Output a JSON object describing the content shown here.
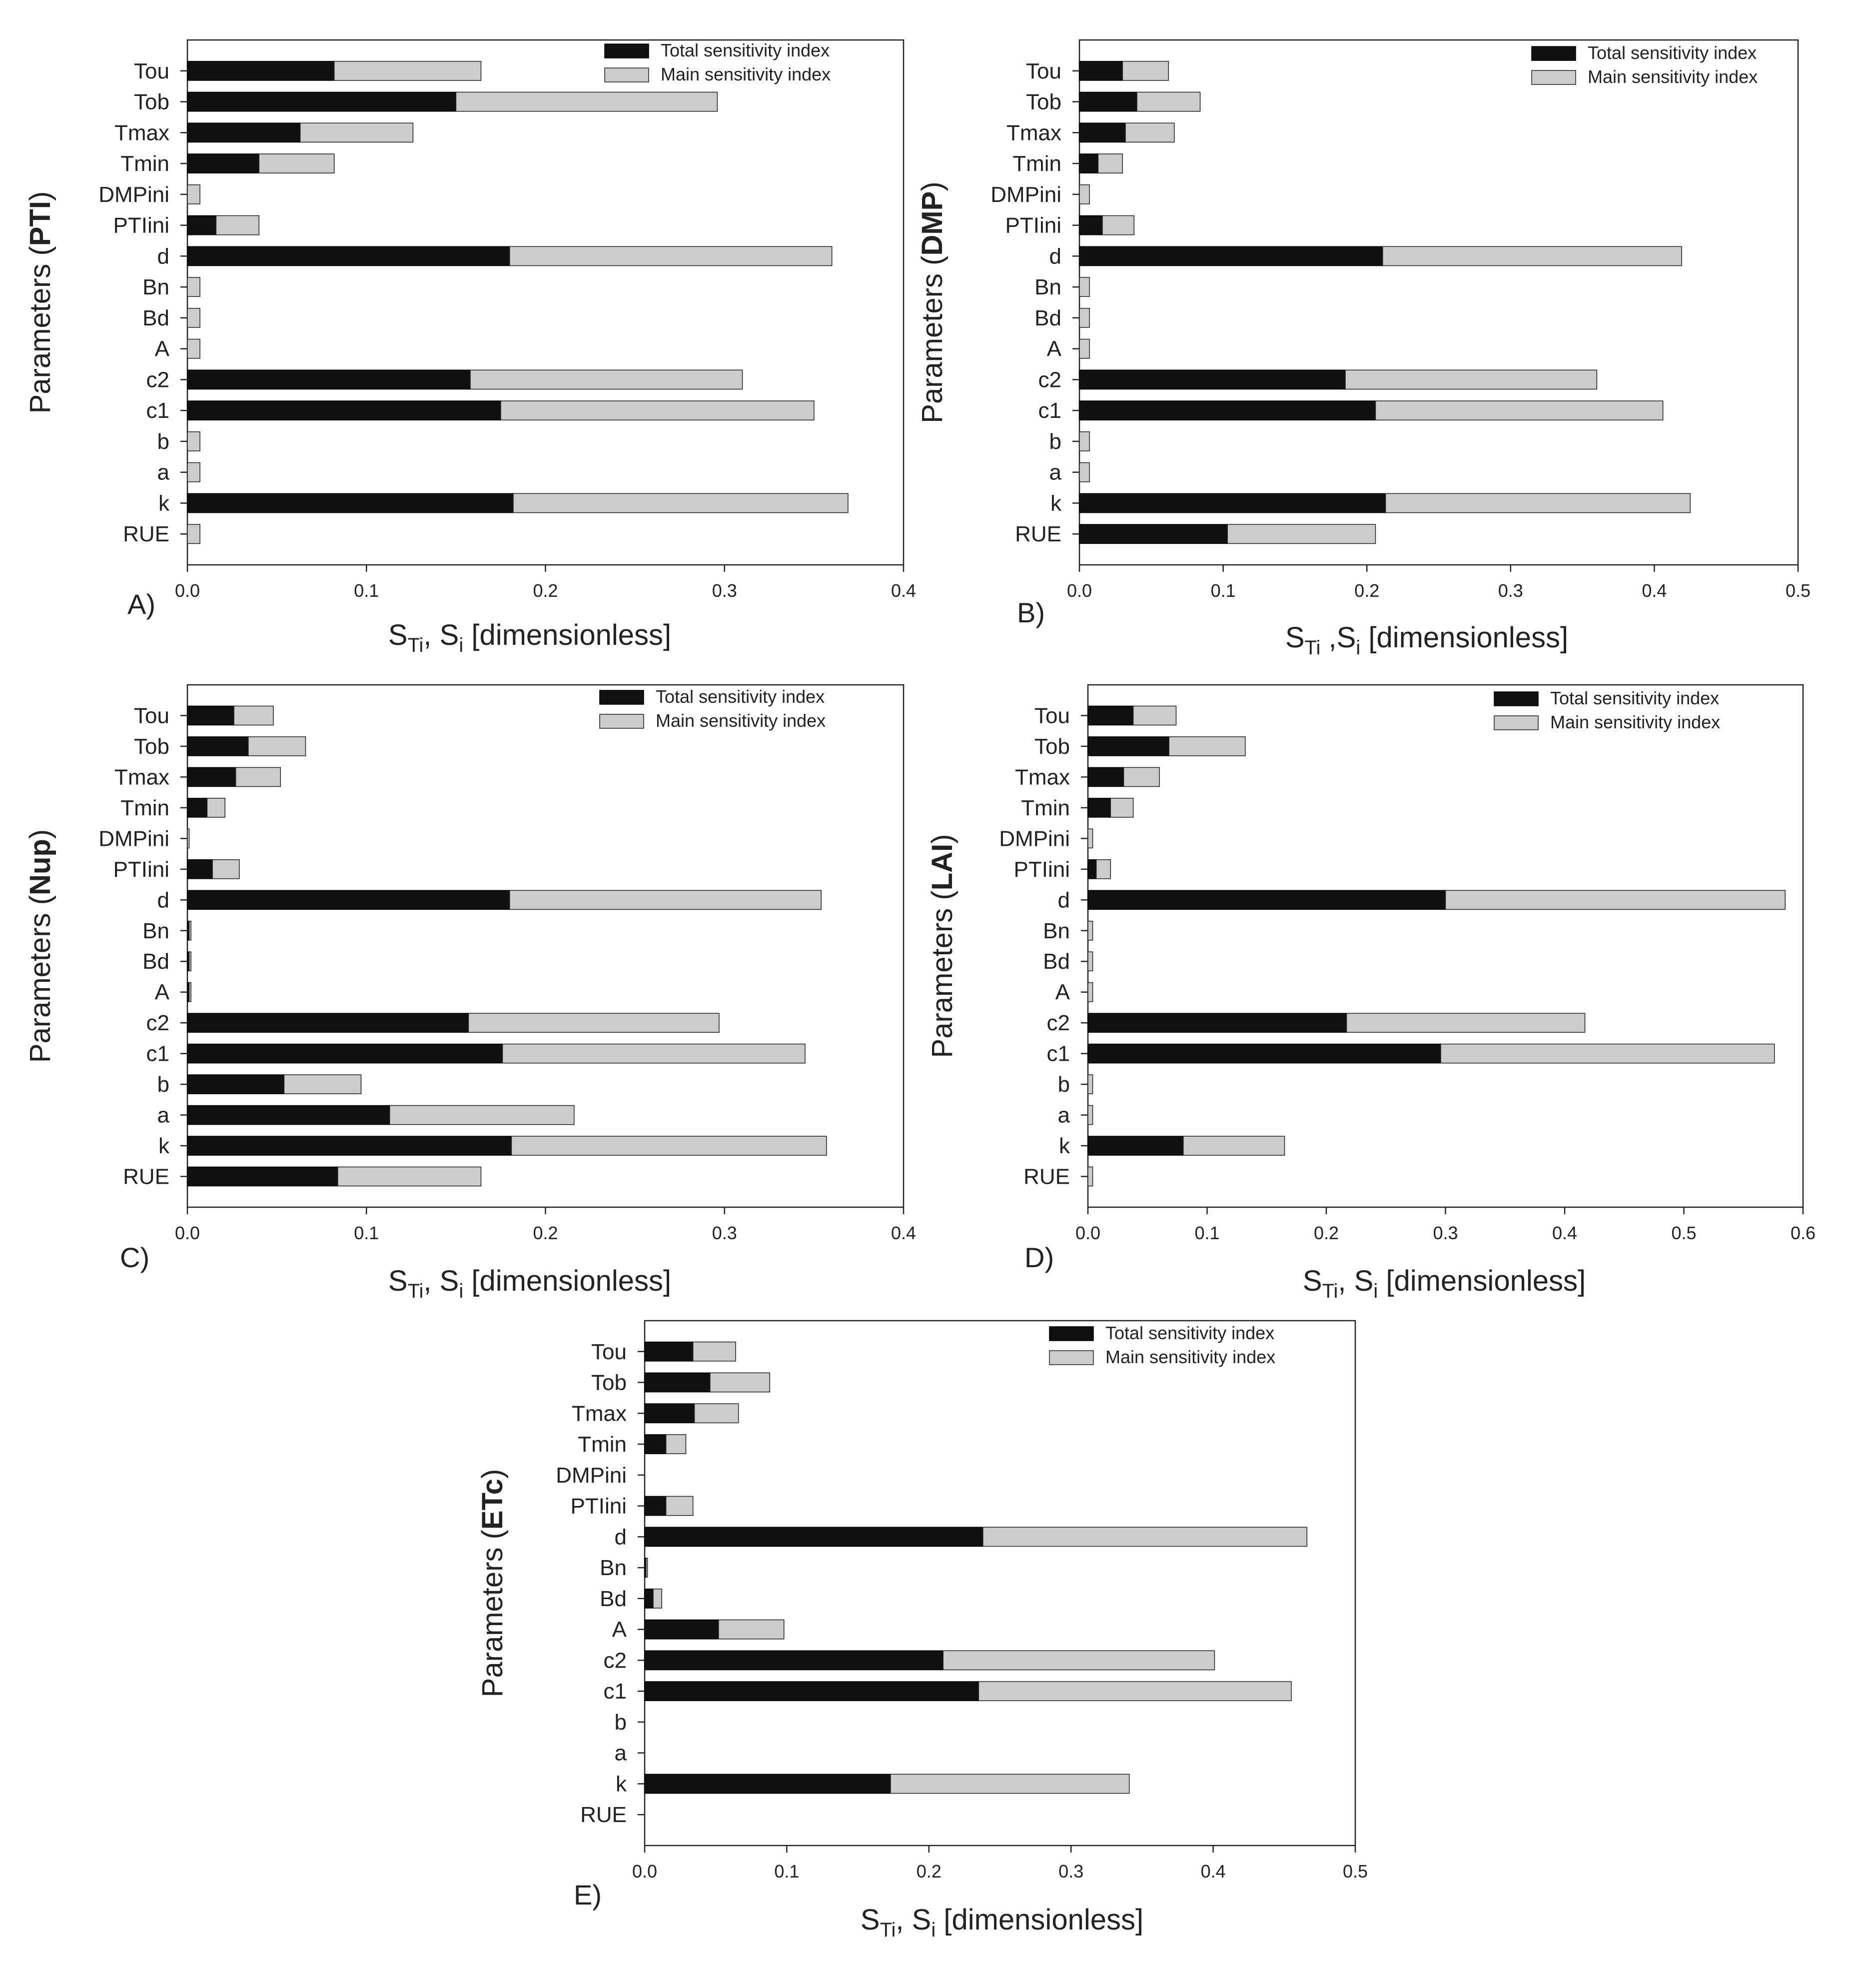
{
  "parameters": [
    "Tou",
    "Tob",
    "Tmax",
    "Tmin",
    "DMPini",
    "PTIini",
    "d",
    "Bn",
    "Bd",
    "A",
    "c2",
    "c1",
    "b",
    "a",
    "k",
    "RUE"
  ],
  "legend": {
    "total_label": "Total sensitivity index",
    "main_label": "Main sensitivity index"
  },
  "colors": {
    "total": "#111111",
    "main": "#cccccc",
    "axis": "#222222"
  },
  "chart_data": [
    {
      "type": "bar",
      "orientation": "horizontal",
      "stacked": true,
      "panel_label": "A)",
      "ylabel_prefix": "Parameters (",
      "ylabel_bold": "PTI",
      "ylabel_suffix": ")",
      "xlabel": {
        "s": "S",
        "ti": "Ti",
        "sep": ", S",
        "i": "i",
        "rest": "  [dimensionless]"
      },
      "xlim": [
        0,
        0.4
      ],
      "xticks": [
        "0.0",
        "0.1",
        "0.2",
        "0.3",
        "0.4"
      ],
      "legend_position": "top-right",
      "series": [
        {
          "name": "Total sensitivity index",
          "values": [
            0.082,
            0.15,
            0.063,
            0.04,
            0.0,
            0.016,
            0.18,
            0.0,
            0.0,
            0.0,
            0.158,
            0.175,
            0.0,
            0.0,
            0.182,
            0.0
          ]
        },
        {
          "name": "Main sensitivity index",
          "values": [
            0.082,
            0.146,
            0.063,
            0.042,
            0.007,
            0.024,
            0.18,
            0.007,
            0.007,
            0.007,
            0.152,
            0.175,
            0.007,
            0.007,
            0.187,
            0.007
          ]
        }
      ]
    },
    {
      "type": "bar",
      "orientation": "horizontal",
      "stacked": true,
      "panel_label": "B)",
      "ylabel_prefix": "Parameters (",
      "ylabel_bold": "DMP",
      "ylabel_suffix": ")",
      "xlabel": {
        "s": "S",
        "ti": "Ti",
        "sep": " ,S",
        "i": "i",
        "rest": " [dimensionless]"
      },
      "xlim": [
        0,
        0.5
      ],
      "xticks": [
        "0.0",
        "0.1",
        "0.2",
        "0.3",
        "0.4",
        "0.5"
      ],
      "legend_position": "top-right",
      "series": [
        {
          "name": "Total sensitivity index",
          "values": [
            0.03,
            0.04,
            0.032,
            0.013,
            0.0,
            0.016,
            0.211,
            0.0,
            0.0,
            0.0,
            0.185,
            0.206,
            0.0,
            0.0,
            0.213,
            0.103
          ]
        },
        {
          "name": "Main sensitivity index",
          "values": [
            0.032,
            0.044,
            0.034,
            0.017,
            0.007,
            0.022,
            0.208,
            0.007,
            0.007,
            0.007,
            0.175,
            0.2,
            0.007,
            0.007,
            0.212,
            0.103
          ]
        }
      ]
    },
    {
      "type": "bar",
      "orientation": "horizontal",
      "stacked": true,
      "panel_label": "C)",
      "ylabel_prefix": "Parameters (",
      "ylabel_bold": "Nup",
      "ylabel_suffix": ")",
      "xlabel": {
        "s": "S",
        "ti": "Ti",
        "sep": ", S",
        "i": "i",
        "rest": " [dimensionless]"
      },
      "xlim": [
        0,
        0.4
      ],
      "xticks": [
        "0.0",
        "0.1",
        "0.2",
        "0.3",
        "0.4"
      ],
      "legend_position": "top-right",
      "series": [
        {
          "name": "Total sensitivity index",
          "values": [
            0.026,
            0.034,
            0.027,
            0.011,
            0.0,
            0.014,
            0.18,
            0.001,
            0.001,
            0.001,
            0.157,
            0.176,
            0.054,
            0.113,
            0.181,
            0.084
          ]
        },
        {
          "name": "Main sensitivity index",
          "values": [
            0.022,
            0.032,
            0.025,
            0.01,
            0.001,
            0.015,
            0.174,
            0.001,
            0.001,
            0.001,
            0.14,
            0.169,
            0.043,
            0.103,
            0.176,
            0.08
          ]
        }
      ]
    },
    {
      "type": "bar",
      "orientation": "horizontal",
      "stacked": true,
      "panel_label": "D)",
      "ylabel_prefix": "Parameters (",
      "ylabel_bold": "LAI",
      "ylabel_suffix": ")",
      "xlabel": {
        "s": "S",
        "ti": "Ti",
        "sep": ", S",
        "i": "i",
        "rest": " [dimensionless]"
      },
      "xlim": [
        0,
        0.6
      ],
      "xticks": [
        "0.0",
        "0.1",
        "0.2",
        "0.3",
        "0.4",
        "0.5",
        "0.6"
      ],
      "legend_position": "top-right",
      "series": [
        {
          "name": "Total sensitivity index",
          "values": [
            0.038,
            0.068,
            0.03,
            0.019,
            0.0,
            0.007,
            0.3,
            0.0,
            0.0,
            0.0,
            0.217,
            0.296,
            0.0,
            0.0,
            0.08,
            0.0
          ]
        },
        {
          "name": "Main sensitivity index",
          "values": [
            0.036,
            0.064,
            0.03,
            0.019,
            0.004,
            0.012,
            0.285,
            0.004,
            0.004,
            0.004,
            0.2,
            0.28,
            0.004,
            0.004,
            0.085,
            0.004
          ]
        }
      ]
    },
    {
      "type": "bar",
      "orientation": "horizontal",
      "stacked": true,
      "panel_label": "E)",
      "ylabel_prefix": "Parameters (",
      "ylabel_bold": "ETc",
      "ylabel_suffix": ")",
      "xlabel": {
        "s": "S",
        "ti": "Ti",
        "sep": ", S",
        "i": "i",
        "rest": " [dimensionless]"
      },
      "xlim": [
        0,
        0.5
      ],
      "xticks": [
        "0.0",
        "0.1",
        "0.2",
        "0.3",
        "0.4",
        "0.5"
      ],
      "legend_position": "top-right",
      "series": [
        {
          "name": "Total sensitivity index",
          "values": [
            0.034,
            0.046,
            0.035,
            0.015,
            0.0,
            0.015,
            0.238,
            0.001,
            0.006,
            0.052,
            0.21,
            0.235,
            0.0,
            0.0,
            0.173,
            0.0
          ]
        },
        {
          "name": "Main sensitivity index",
          "values": [
            0.03,
            0.042,
            0.031,
            0.014,
            0.0,
            0.019,
            0.228,
            0.001,
            0.006,
            0.046,
            0.191,
            0.22,
            0.0,
            0.0,
            0.168,
            0.0
          ]
        }
      ]
    }
  ]
}
